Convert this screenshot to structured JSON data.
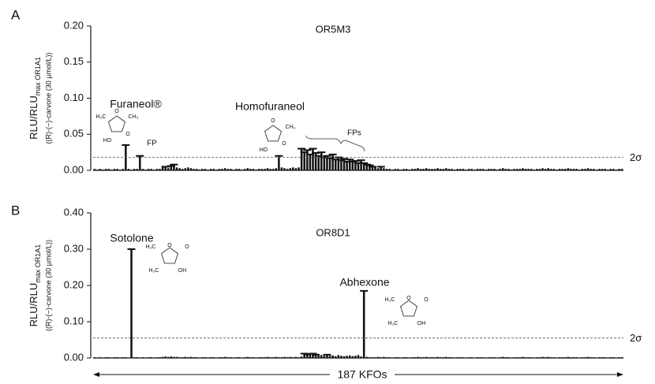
{
  "chart_data": [
    {
      "type": "bar",
      "panel": "A",
      "title": "OR5M3",
      "ylabel": "RLU/RLU",
      "ylabel_sub": "max OR1A1",
      "ylabel2": "((R)-(−)-carvone (30 µmol/L))",
      "ylim": [
        0,
        0.2
      ],
      "yticks": [
        {
          "value": 0,
          "label": "0.00"
        },
        {
          "value": 0.05,
          "label": "0.05"
        },
        {
          "value": 0.1,
          "label": "0.10"
        },
        {
          "value": 0.15,
          "label": "0.15"
        },
        {
          "value": 0.2,
          "label": "0.20"
        }
      ],
      "threshold": {
        "value": 0.018,
        "label": "2σ"
      },
      "color": "#111111",
      "annotations": [
        "Furaneol®",
        "FP",
        "Homofuraneol",
        "FPs"
      ],
      "molecules": [
        [
          "H₃C",
          "O",
          "CH₃",
          "HO",
          "O"
        ],
        [
          "O",
          "CH₃",
          "HO",
          "O"
        ]
      ],
      "categories": [
        null,
        null,
        null,
        null,
        null,
        null,
        null,
        null,
        null,
        null,
        null,
        null,
        null,
        null,
        null,
        null,
        null,
        null,
        null,
        null,
        null,
        null,
        null,
        null,
        null,
        null,
        null,
        null,
        null,
        null,
        null,
        null,
        null,
        null,
        null,
        null,
        null,
        null,
        null,
        null,
        null,
        null,
        null,
        null,
        null,
        null,
        null,
        null,
        null,
        null,
        null,
        null,
        null,
        null,
        null,
        null,
        null,
        null,
        null,
        null,
        null,
        null,
        null,
        null,
        null,
        null,
        null,
        null,
        null,
        null,
        null,
        null,
        null,
        null,
        null,
        null,
        null,
        null,
        null,
        null,
        null,
        null,
        null,
        null,
        null,
        null,
        null,
        null,
        null,
        null,
        null,
        null,
        null,
        null,
        null,
        null,
        null,
        null,
        null,
        null,
        null,
        null,
        null,
        null,
        null,
        null,
        null,
        null,
        null,
        null,
        null,
        null,
        null,
        null,
        null,
        null,
        null,
        null,
        null,
        null,
        null,
        null,
        null,
        null,
        null,
        null,
        null,
        null,
        null,
        null,
        null,
        null,
        null,
        null,
        null,
        null,
        null,
        null,
        null,
        null,
        null,
        null,
        null,
        null,
        null,
        null,
        null,
        null,
        null,
        null,
        null,
        null,
        null,
        null,
        null,
        null,
        null,
        null,
        null,
        null,
        null,
        null,
        null,
        null,
        null,
        null,
        null,
        null,
        null,
        null,
        null,
        null,
        null,
        null,
        null,
        null,
        null,
        null,
        null,
        null,
        null,
        null,
        null,
        null,
        null,
        null,
        null
      ],
      "values": [
        0.002,
        0.001,
        0.002,
        0.001,
        0.002,
        0.002,
        0.001,
        0.002,
        0.002,
        0.001,
        0.002,
        0.035,
        0.002,
        0.001,
        0.002,
        0.002,
        0.02,
        0.002,
        0.001,
        0.002,
        0.002,
        0.001,
        0.002,
        0.002,
        0.004,
        0.005,
        0.003,
        0.006,
        0.008,
        0.004,
        0.003,
        0.002,
        0.003,
        0.004,
        0.003,
        0.002,
        0.002,
        0.001,
        0.002,
        0.002,
        0.001,
        0.002,
        0.002,
        0.001,
        0.002,
        0.002,
        0.003,
        0.002,
        0.002,
        0.001,
        0.002,
        0.002,
        0.001,
        0.002,
        0.003,
        0.002,
        0.002,
        0.001,
        0.002,
        0.002,
        0.002,
        0.003,
        0.002,
        0.002,
        0.003,
        0.02,
        0.004,
        0.003,
        0.002,
        0.003,
        0.004,
        0.003,
        0.004,
        0.03,
        0.025,
        0.028,
        0.022,
        0.03,
        0.024,
        0.02,
        0.025,
        0.018,
        0.02,
        0.017,
        0.022,
        0.015,
        0.018,
        0.014,
        0.016,
        0.012,
        0.015,
        0.012,
        0.013,
        0.01,
        0.014,
        0.01,
        0.008,
        0.007,
        0.005,
        0.004,
        0.003,
        0.005,
        0.003,
        0.002,
        0.002,
        0.001,
        0.002,
        0.002,
        0.001,
        0.002,
        0.002,
        0.001,
        0.002,
        0.002,
        0.003,
        0.002,
        0.002,
        0.003,
        0.002,
        0.002,
        0.002,
        0.003,
        0.002,
        0.002,
        0.003,
        0.002,
        0.002,
        0.001,
        0.002,
        0.002,
        0.002,
        0.001,
        0.002,
        0.002,
        0.001,
        0.002,
        0.002,
        0.002,
        0.001,
        0.002,
        0.002,
        0.002,
        0.001,
        0.002,
        0.003,
        0.002,
        0.002,
        0.001,
        0.002,
        0.002,
        0.002,
        0.003,
        0.002,
        0.002,
        0.002,
        0.001,
        0.002,
        0.002,
        0.003,
        0.002,
        0.003,
        0.002,
        0.002,
        0.001,
        0.002,
        0.002,
        0.002,
        0.003,
        0.002,
        0.002,
        0.002,
        0.001,
        0.002,
        0.002,
        0.003,
        0.002,
        0.002,
        0.001,
        0.002,
        0.002,
        0.002,
        0.001,
        0.002,
        0.002,
        0.001,
        0.002,
        0.002
      ]
    },
    {
      "type": "bar",
      "panel": "B",
      "title": "OR8D1",
      "ylabel": "RLU/RLU",
      "ylabel_sub": "max OR1A1",
      "ylabel2": "((R)-(−)-carvone (30 µmol/L))",
      "xlabel": "187 KFOs",
      "ylim": [
        0,
        0.4
      ],
      "yticks": [
        {
          "value": 0,
          "label": "0.00"
        },
        {
          "value": 0.1,
          "label": "0.10"
        },
        {
          "value": 0.2,
          "label": "0.20"
        },
        {
          "value": 0.3,
          "label": "0.30"
        },
        {
          "value": 0.4,
          "label": "0.40"
        }
      ],
      "threshold": {
        "value": 0.055,
        "label": "2σ"
      },
      "color": "#111111",
      "annotations": [
        "Sotolone",
        "Abhexone"
      ],
      "molecules": [
        [
          "H₃C",
          "O",
          "O",
          "H₃C",
          "OH"
        ],
        [
          "H₃C",
          "O",
          "O",
          "H₃C",
          "OH"
        ]
      ],
      "categories": [
        null,
        null,
        null,
        null,
        null,
        null,
        null,
        null,
        null,
        null,
        null,
        null,
        null,
        null,
        null,
        null,
        null,
        null,
        null,
        null,
        null,
        null,
        null,
        null,
        null,
        null,
        null,
        null,
        null,
        null,
        null,
        null,
        null,
        null,
        null,
        null,
        null,
        null,
        null,
        null,
        null,
        null,
        null,
        null,
        null,
        null,
        null,
        null,
        null,
        null,
        null,
        null,
        null,
        null,
        null,
        null,
        null,
        null,
        null,
        null,
        null,
        null,
        null,
        null,
        null,
        null,
        null,
        null,
        null,
        null,
        null,
        null,
        null,
        null,
        null,
        null,
        null,
        null,
        null,
        null,
        null,
        null,
        null,
        null,
        null,
        null,
        null,
        null,
        null,
        null,
        null,
        null,
        null,
        null,
        null,
        null,
        null,
        null,
        null,
        null,
        null,
        null,
        null,
        null,
        null,
        null,
        null,
        null,
        null,
        null,
        null,
        null,
        null,
        null,
        null,
        null,
        null,
        null,
        null,
        null,
        null,
        null,
        null,
        null,
        null,
        null,
        null,
        null,
        null,
        null,
        null,
        null,
        null,
        null,
        null,
        null,
        null,
        null,
        null,
        null,
        null,
        null,
        null,
        null,
        null,
        null,
        null,
        null,
        null,
        null,
        null,
        null,
        null,
        null,
        null,
        null,
        null,
        null,
        null,
        null,
        null,
        null,
        null,
        null,
        null,
        null,
        null,
        null,
        null,
        null,
        null,
        null,
        null,
        null,
        null,
        null,
        null,
        null,
        null,
        null,
        null,
        null,
        null,
        null,
        null,
        null,
        null
      ],
      "values": [
        0.002,
        0.001,
        0.002,
        0.001,
        0.002,
        0.002,
        0.001,
        0.002,
        0.002,
        0.001,
        0.002,
        0.002,
        0.001,
        0.3,
        0.002,
        0.002,
        0.001,
        0.002,
        0.001,
        0.002,
        0.002,
        0.001,
        0.002,
        0.002,
        0.003,
        0.004,
        0.003,
        0.004,
        0.003,
        0.003,
        0.002,
        0.002,
        0.003,
        0.002,
        0.003,
        0.002,
        0.002,
        0.001,
        0.002,
        0.002,
        0.001,
        0.002,
        0.002,
        0.001,
        0.002,
        0.002,
        0.003,
        0.002,
        0.002,
        0.001,
        0.002,
        0.002,
        0.001,
        0.002,
        0.003,
        0.002,
        0.002,
        0.001,
        0.002,
        0.002,
        0.002,
        0.003,
        0.002,
        0.002,
        0.003,
        0.002,
        0.002,
        0.003,
        0.002,
        0.003,
        0.002,
        0.003,
        0.002,
        0.004,
        0.012,
        0.01,
        0.008,
        0.012,
        0.009,
        0.007,
        0.008,
        0.006,
        0.009,
        0.006,
        0.007,
        0.005,
        0.008,
        0.006,
        0.005,
        0.006,
        0.007,
        0.005,
        0.006,
        0.008,
        0.004,
        0.185,
        0.003,
        0.002,
        0.002,
        0.002,
        0.003,
        0.002,
        0.003,
        0.002,
        0.002,
        0.001,
        0.002,
        0.002,
        0.001,
        0.002,
        0.002,
        0.001,
        0.002,
        0.002,
        0.003,
        0.002,
        0.002,
        0.003,
        0.002,
        0.002,
        0.002,
        0.003,
        0.002,
        0.002,
        0.003,
        0.002,
        0.002,
        0.001,
        0.002,
        0.002,
        0.002,
        0.001,
        0.002,
        0.002,
        0.001,
        0.002,
        0.002,
        0.002,
        0.001,
        0.002,
        0.002,
        0.002,
        0.001,
        0.002,
        0.003,
        0.002,
        0.002,
        0.001,
        0.002,
        0.002,
        0.002,
        0.003,
        0.002,
        0.002,
        0.002,
        0.001,
        0.002,
        0.002,
        0.003,
        0.002,
        0.003,
        0.002,
        0.002,
        0.001,
        0.002,
        0.002,
        0.002,
        0.003,
        0.002,
        0.002,
        0.002,
        0.001,
        0.002,
        0.002,
        0.003,
        0.002,
        0.002,
        0.001,
        0.002,
        0.002,
        0.002,
        0.001,
        0.002,
        0.002,
        0.001,
        0.002,
        0.002
      ]
    }
  ]
}
